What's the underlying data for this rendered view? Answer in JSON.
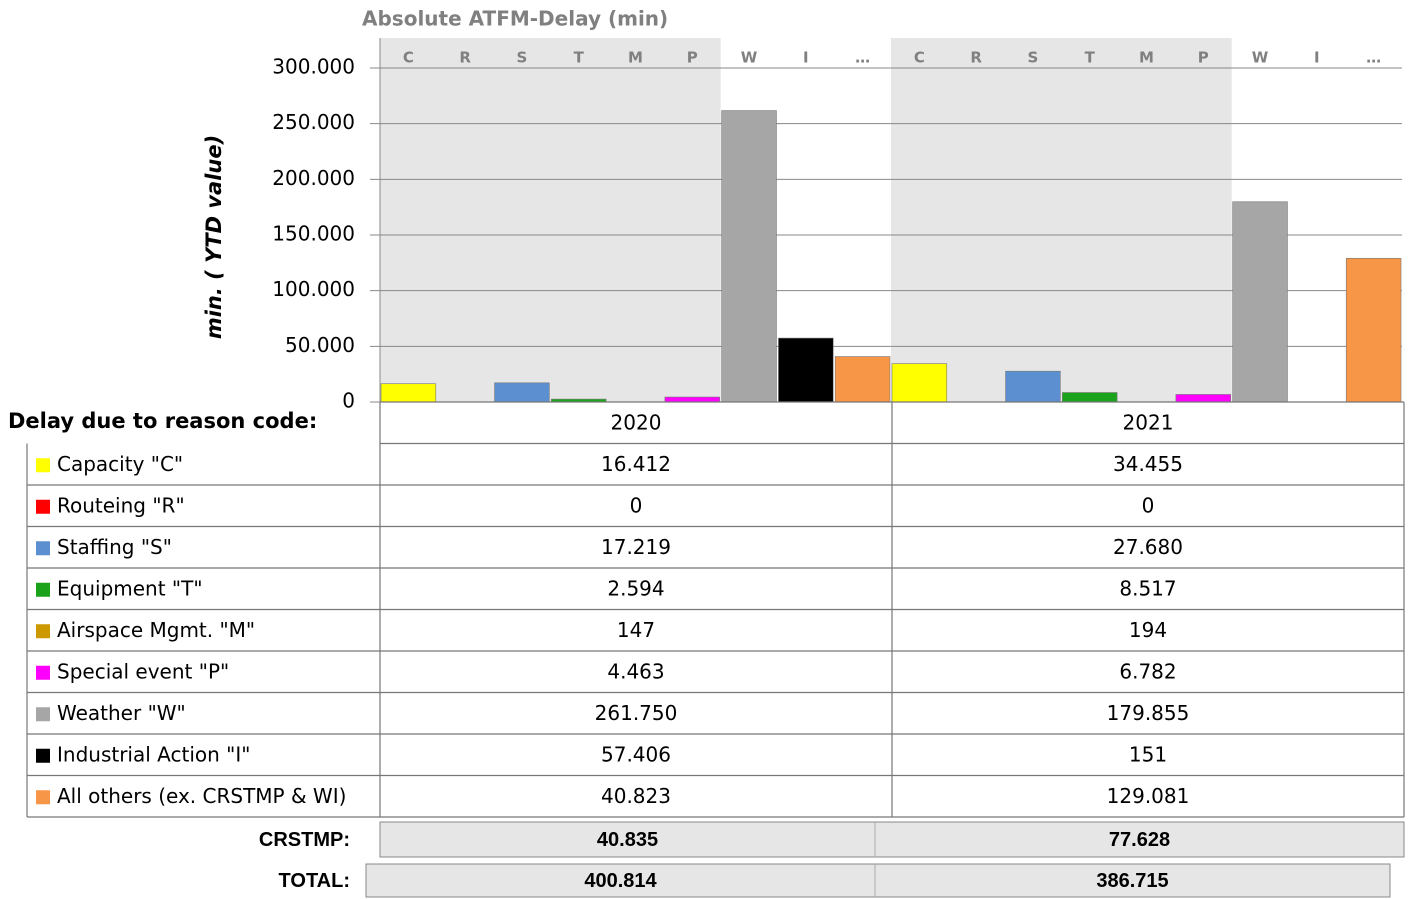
{
  "chart_data": {
    "type": "bar",
    "title": "Absolute ATFM-Delay (min)",
    "ylabel": "min. ( YTD value)",
    "codes": [
      "C",
      "R",
      "S",
      "T",
      "M",
      "P",
      "W",
      "I",
      "…"
    ],
    "groups": [
      "2020",
      "2021"
    ],
    "table_header": "Delay due to reason code:",
    "ylim": [
      0,
      300000
    ],
    "yticks": [
      0,
      {
        "value": 50000,
        "label": "50.000"
      },
      {
        "value": 100000,
        "label": "100.000"
      },
      {
        "value": 150000,
        "label": "150.000"
      },
      {
        "value": 200000,
        "label": "200.000"
      },
      {
        "value": 250000,
        "label": "250.000"
      },
      {
        "value": 300000,
        "label": "300.000"
      }
    ],
    "grid": true,
    "series": [
      {
        "name": "Capacity \"C\"",
        "color": "#ffff00",
        "values": [
          16412,
          34455
        ],
        "value_labels": [
          "16.412",
          "34.455"
        ]
      },
      {
        "name": "Routeing \"R\"",
        "color": "#ff0000",
        "values": [
          0,
          0
        ]
      },
      {
        "name": "Staffing \"S\"",
        "color": "#5b8fd0",
        "values": [
          17219,
          27680
        ],
        "value_labels": [
          "17.219",
          "27.680"
        ]
      },
      {
        "name": "Equipment \"T\"",
        "color": "#1aa31a",
        "values": [
          2594,
          8517
        ],
        "value_labels": [
          "2.594",
          "8.517"
        ]
      },
      {
        "name": "Airspace Mgmt. \"M\"",
        "color": "#cc9900",
        "values": [
          147,
          194
        ]
      },
      {
        "name": "Special event \"P\"",
        "color": "#ff00ff",
        "values": [
          4463,
          6782
        ],
        "value_labels": [
          "4.463",
          "6.782"
        ]
      },
      {
        "name": "Weather \"W\"",
        "color": "#a6a6a6",
        "values": [
          261750,
          179855
        ],
        "value_labels": [
          "261.750",
          "179.855"
        ]
      },
      {
        "name": "Industrial Action \"I\"",
        "color": "#000000",
        "values": [
          57406,
          151
        ],
        "value_labels": [
          "57.406",
          "151"
        ]
      },
      {
        "name": "All others (ex. CRSTMP & WI)",
        "color": "#f79646",
        "values": [
          40823,
          129081
        ],
        "value_labels": [
          "40.823",
          "129.081"
        ]
      }
    ],
    "summary": [
      {
        "label": "CRSTMP:",
        "values": [
          40835,
          77628
        ],
        "value_labels": [
          "40.835",
          "77.628"
        ]
      },
      {
        "label": "TOTAL:",
        "values": [
          400814,
          386715
        ],
        "value_labels": [
          "400.814",
          "386.715"
        ]
      }
    ]
  }
}
